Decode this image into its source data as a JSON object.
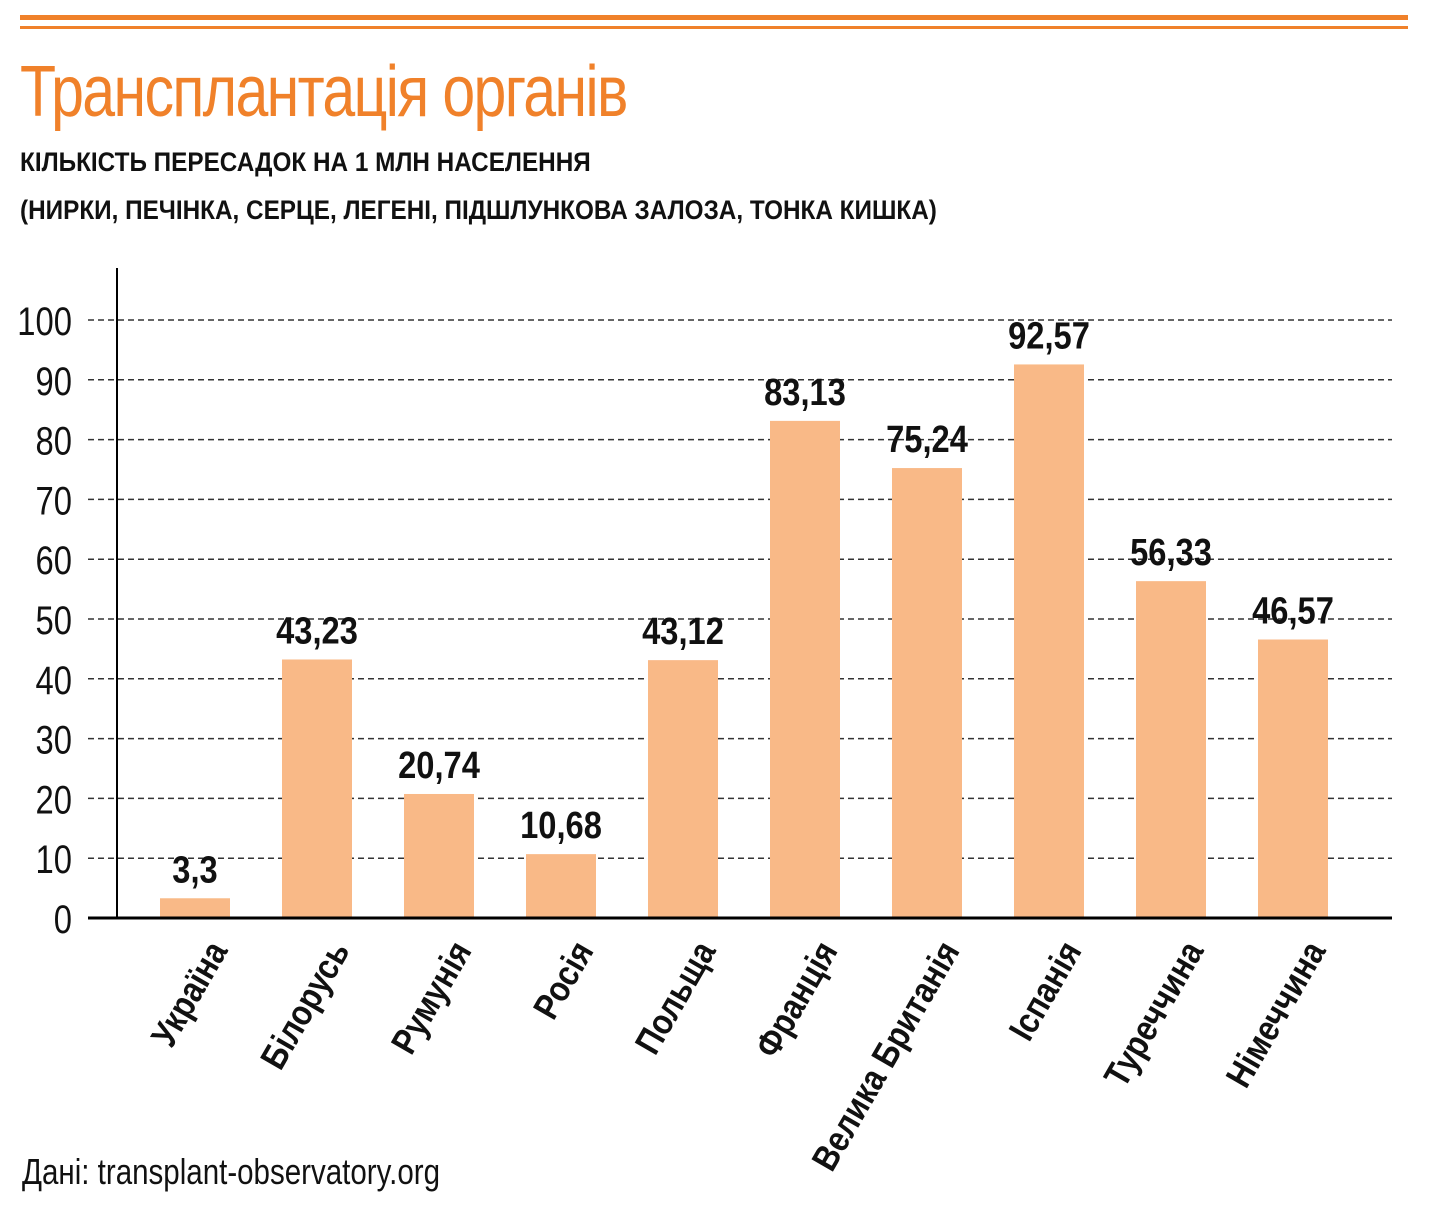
{
  "header": {
    "title": "Трансплантація органів",
    "subtitle_line1": "КІЛЬКІСТЬ ПЕРЕСАДОК НА 1 МЛН НАСЕЛЕННЯ",
    "subtitle_line2": "(НИРКИ, ПЕЧІНКА, СЕРЦЕ, ЛЕГЕНІ, ПІДШЛУНКОВА ЗАЛОЗА, ТОНКА КИШКА)"
  },
  "footer": {
    "source": "Дані: transplant-observatory.org"
  },
  "colors": {
    "accent": "#f0812a",
    "bar": "#f9b987",
    "text": "#111111"
  },
  "chart_data": {
    "type": "bar",
    "categories": [
      "Україна",
      "Білорусь",
      "Румунія",
      "Росія",
      "Польща",
      "Франція",
      "Велика Британія",
      "Іспанія",
      "Туреччина",
      "Німеччина"
    ],
    "values": [
      3.3,
      43.23,
      20.74,
      10.68,
      43.12,
      83.13,
      75.24,
      92.57,
      56.33,
      46.57
    ],
    "data_labels": [
      "3,3",
      "43,23",
      "20,74",
      "10,68",
      "43,12",
      "83,13",
      "75,24",
      "92,57",
      "56,33",
      "46,57"
    ],
    "yticks": [
      0,
      10,
      20,
      30,
      40,
      50,
      60,
      70,
      80,
      90,
      100
    ],
    "ylim": [
      0,
      100
    ],
    "grid": true,
    "legend": "none"
  }
}
